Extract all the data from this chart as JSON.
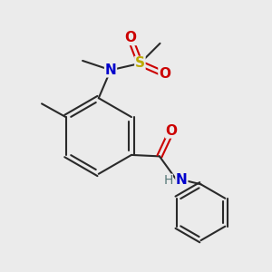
{
  "bg_color": "#ebebeb",
  "line_color": "#2a2a2a",
  "bond_width": 1.5,
  "colors": {
    "C": "#2a2a2a",
    "N": "#0000cc",
    "O": "#cc0000",
    "S": "#bbaa00",
    "H": "#557777"
  },
  "font_size_atom": 11,
  "font_size_h": 10
}
